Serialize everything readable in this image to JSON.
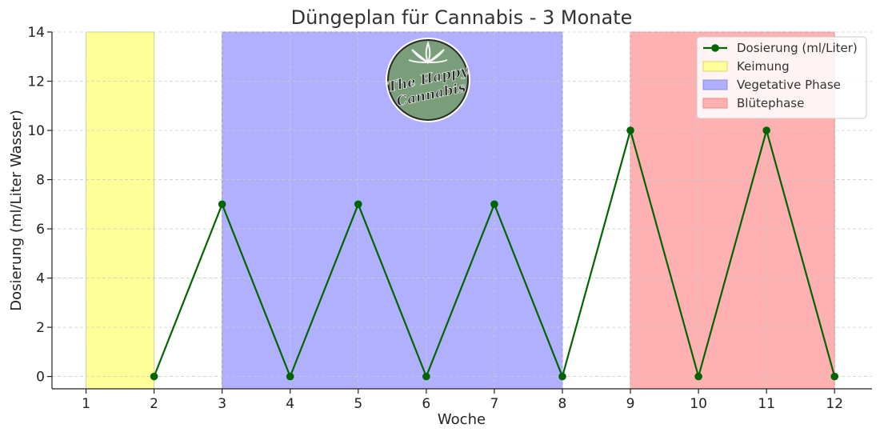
{
  "chart_data": {
    "type": "line",
    "title": "Düngeplan für Cannabis - 3 Monate",
    "xlabel": "Woche",
    "ylabel": "Dosierung (ml/Liter Wasser)",
    "xlim": [
      0.5,
      12.55
    ],
    "ylim": [
      -0.5,
      14
    ],
    "xticks": [
      1,
      2,
      3,
      4,
      5,
      6,
      7,
      8,
      9,
      10,
      11,
      12
    ],
    "yticks": [
      0,
      2,
      4,
      6,
      8,
      10,
      12,
      14
    ],
    "grid": true,
    "legend_position": "top-right",
    "series": [
      {
        "name": "Dosierung (ml/Liter)",
        "color": "#006400",
        "x": [
          2,
          3,
          4,
          5,
          6,
          7,
          8,
          9,
          10,
          11,
          12
        ],
        "y": [
          0,
          7,
          0,
          7,
          0,
          7,
          0,
          10,
          0,
          10,
          0
        ]
      }
    ],
    "phases": [
      {
        "name": "Keimung",
        "start": 1,
        "end": 2,
        "color": "#ffff99",
        "edge": "#d8d86a"
      },
      {
        "name": "Vegetative Phase",
        "start": 3,
        "end": 8,
        "color": "#b0b0ff",
        "edge": "#8e8ee6"
      },
      {
        "name": "Blütephase",
        "start": 9,
        "end": 12,
        "color": "#ffb0b0",
        "edge": "#e08c8c"
      }
    ]
  },
  "logo": {
    "text_line1": "The Happy",
    "text_line2": "Cannabis",
    "icon": "cannabis-leaf-icon",
    "bg_color": "#7a9e7a"
  }
}
